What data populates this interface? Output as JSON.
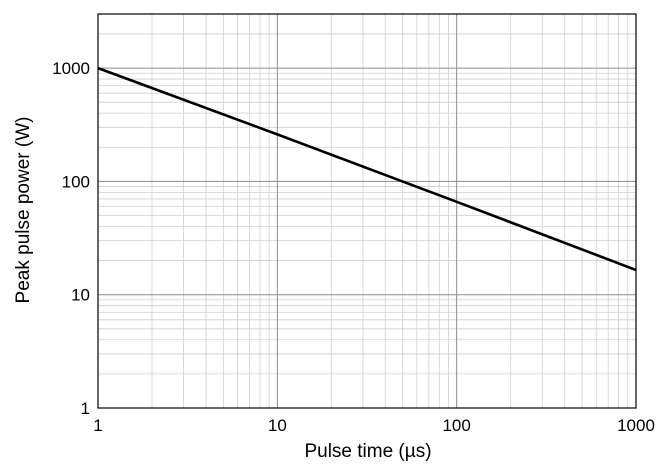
{
  "chart_data": {
    "type": "line",
    "xscale": "log",
    "yscale": "log",
    "xlim": [
      1,
      1000
    ],
    "ylim": [
      1,
      3000
    ],
    "xlabel": "Pulse time (µs)",
    "ylabel": "Peak pulse power (W)",
    "x_ticks": [
      "1",
      "10",
      "100",
      "1000"
    ],
    "y_ticks": [
      "1",
      "10",
      "100",
      "1000"
    ],
    "grid": true,
    "series": [
      {
        "x": [
          1,
          10,
          100,
          1000
        ],
        "y": [
          1000,
          260,
          66,
          16.5
        ]
      }
    ]
  }
}
